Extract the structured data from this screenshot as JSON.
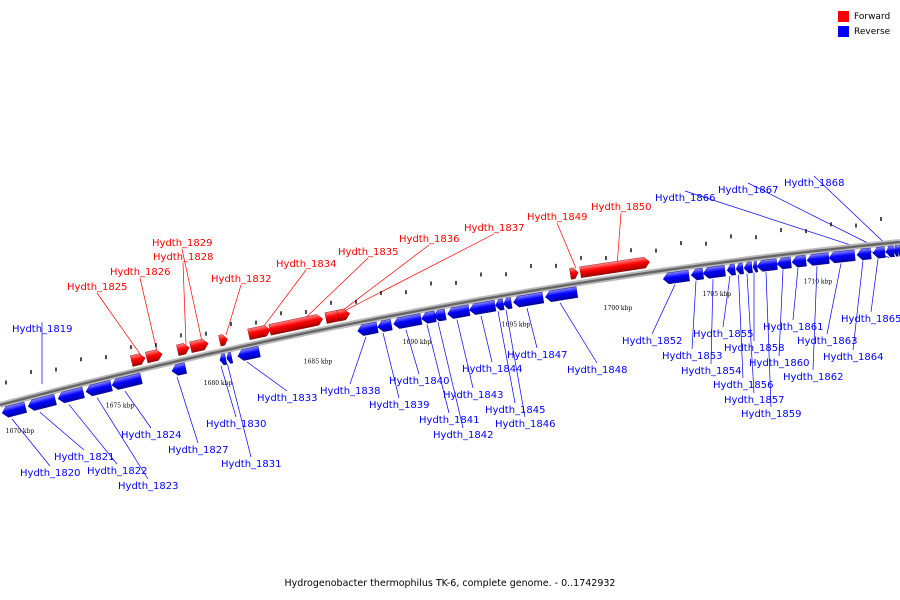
{
  "legend": [
    {
      "label": "Forward",
      "color": "#ff0000"
    },
    {
      "label": "Reverse",
      "color": "#0000ff"
    }
  ],
  "caption": "Hydrogenobacter thermophilus TK-6, complete genome. - 0..1742932",
  "colors": {
    "forward": "#ff0000",
    "reverse": "#0000ff",
    "backbone": "#888888",
    "label_line_forward": "#ff0000",
    "label_line_reverse": "#0000ff"
  },
  "ticks": [
    {
      "label": "1670 kbp",
      "pos": 1670
    },
    {
      "label": "1675 kbp",
      "pos": 1675
    },
    {
      "label": "1680 kbp",
      "pos": 1680
    },
    {
      "label": "1685 kbp",
      "pos": 1685
    },
    {
      "label": "1690 kbp",
      "pos": 1690
    },
    {
      "label": "1695 kbp",
      "pos": 1695
    },
    {
      "label": "1700 kbp",
      "pos": 1700
    },
    {
      "label": "1705 kbp",
      "pos": 1705
    },
    {
      "label": "1710 kbp",
      "pos": 1710
    }
  ],
  "genes": [
    {
      "name": "Hydth_1819",
      "strand": "reverse"
    },
    {
      "name": "Hydth_1820",
      "strand": "reverse"
    },
    {
      "name": "Hydth_1821",
      "strand": "reverse"
    },
    {
      "name": "Hydth_1822",
      "strand": "reverse"
    },
    {
      "name": "Hydth_1823",
      "strand": "reverse"
    },
    {
      "name": "Hydth_1824",
      "strand": "reverse"
    },
    {
      "name": "Hydth_1825",
      "strand": "forward"
    },
    {
      "name": "Hydth_1826",
      "strand": "forward"
    },
    {
      "name": "Hydth_1827",
      "strand": "reverse"
    },
    {
      "name": "Hydth_1828",
      "strand": "forward"
    },
    {
      "name": "Hydth_1829",
      "strand": "forward"
    },
    {
      "name": "Hydth_1830",
      "strand": "reverse"
    },
    {
      "name": "Hydth_1831",
      "strand": "reverse"
    },
    {
      "name": "Hydth_1832",
      "strand": "forward"
    },
    {
      "name": "Hydth_1833",
      "strand": "reverse"
    },
    {
      "name": "Hydth_1834",
      "strand": "forward"
    },
    {
      "name": "Hydth_1835",
      "strand": "forward"
    },
    {
      "name": "Hydth_1836",
      "strand": "forward"
    },
    {
      "name": "Hydth_1837",
      "strand": "forward"
    },
    {
      "name": "Hydth_1838",
      "strand": "reverse"
    },
    {
      "name": "Hydth_1839",
      "strand": "reverse"
    },
    {
      "name": "Hydth_1840",
      "strand": "reverse"
    },
    {
      "name": "Hydth_1841",
      "strand": "reverse"
    },
    {
      "name": "Hydth_1842",
      "strand": "reverse"
    },
    {
      "name": "Hydth_1843",
      "strand": "reverse"
    },
    {
      "name": "Hydth_1844",
      "strand": "reverse"
    },
    {
      "name": "Hydth_1845",
      "strand": "reverse"
    },
    {
      "name": "Hydth_1846",
      "strand": "reverse"
    },
    {
      "name": "Hydth_1847",
      "strand": "reverse"
    },
    {
      "name": "Hydth_1848",
      "strand": "reverse"
    },
    {
      "name": "Hydth_1849",
      "strand": "forward"
    },
    {
      "name": "Hydth_1850",
      "strand": "forward"
    },
    {
      "name": "Hydth_1852",
      "strand": "reverse"
    },
    {
      "name": "Hydth_1853",
      "strand": "reverse"
    },
    {
      "name": "Hydth_1854",
      "strand": "reverse"
    },
    {
      "name": "Hydth_1855",
      "strand": "reverse"
    },
    {
      "name": "Hydth_1856",
      "strand": "reverse"
    },
    {
      "name": "Hydth_1857",
      "strand": "reverse"
    },
    {
      "name": "Hydth_1858",
      "strand": "reverse"
    },
    {
      "name": "Hydth_1859",
      "strand": "reverse"
    },
    {
      "name": "Hydth_1860",
      "strand": "reverse"
    },
    {
      "name": "Hydth_1861",
      "strand": "reverse"
    },
    {
      "name": "Hydth_1862",
      "strand": "reverse"
    },
    {
      "name": "Hydth_1863",
      "strand": "reverse"
    },
    {
      "name": "Hydth_1864",
      "strand": "reverse"
    },
    {
      "name": "Hydth_1865",
      "strand": "reverse"
    },
    {
      "name": "Hydth_1866",
      "strand": "reverse"
    },
    {
      "name": "Hydth_1867",
      "strand": "reverse"
    },
    {
      "name": "Hydth_1868",
      "strand": "reverse"
    }
  ]
}
